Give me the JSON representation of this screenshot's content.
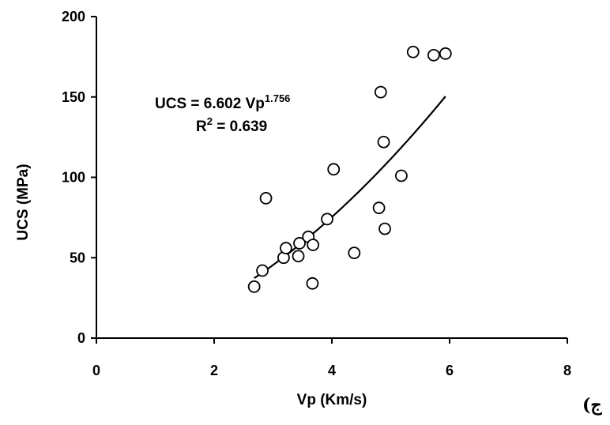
{
  "chart_data": {
    "type": "scatter",
    "xlabel": "Vp (Km/s)",
    "ylabel": "UCS (MPa)",
    "xlim": [
      0,
      8
    ],
    "ylim": [
      0,
      200
    ],
    "xticks": [
      0,
      2,
      4,
      6,
      8
    ],
    "yticks": [
      0,
      50,
      100,
      150,
      200
    ],
    "grid": false,
    "marker": "open-circle",
    "points": [
      {
        "x": 2.68,
        "y": 32
      },
      {
        "x": 2.82,
        "y": 42
      },
      {
        "x": 2.88,
        "y": 87
      },
      {
        "x": 3.18,
        "y": 50
      },
      {
        "x": 3.22,
        "y": 56
      },
      {
        "x": 3.43,
        "y": 51
      },
      {
        "x": 3.45,
        "y": 59
      },
      {
        "x": 3.6,
        "y": 63
      },
      {
        "x": 3.67,
        "y": 34
      },
      {
        "x": 3.68,
        "y": 58
      },
      {
        "x": 3.92,
        "y": 74
      },
      {
        "x": 4.03,
        "y": 105
      },
      {
        "x": 4.38,
        "y": 53
      },
      {
        "x": 4.8,
        "y": 81
      },
      {
        "x": 4.83,
        "y": 153
      },
      {
        "x": 4.88,
        "y": 122
      },
      {
        "x": 4.9,
        "y": 68
      },
      {
        "x": 5.18,
        "y": 101
      },
      {
        "x": 5.38,
        "y": 178
      },
      {
        "x": 5.73,
        "y": 176
      },
      {
        "x": 5.93,
        "y": 177
      }
    ],
    "trendline": {
      "type": "power",
      "coefficient": 6.602,
      "exponent": 1.756,
      "x_range": [
        2.68,
        5.93
      ],
      "equation_base": "UCS = 6.602 Vp",
      "equation_exponent": "1.756",
      "r2_base": "R",
      "r2_exponent": "2",
      "r2_value": " = 0.639"
    }
  },
  "panel_label": "ج)"
}
